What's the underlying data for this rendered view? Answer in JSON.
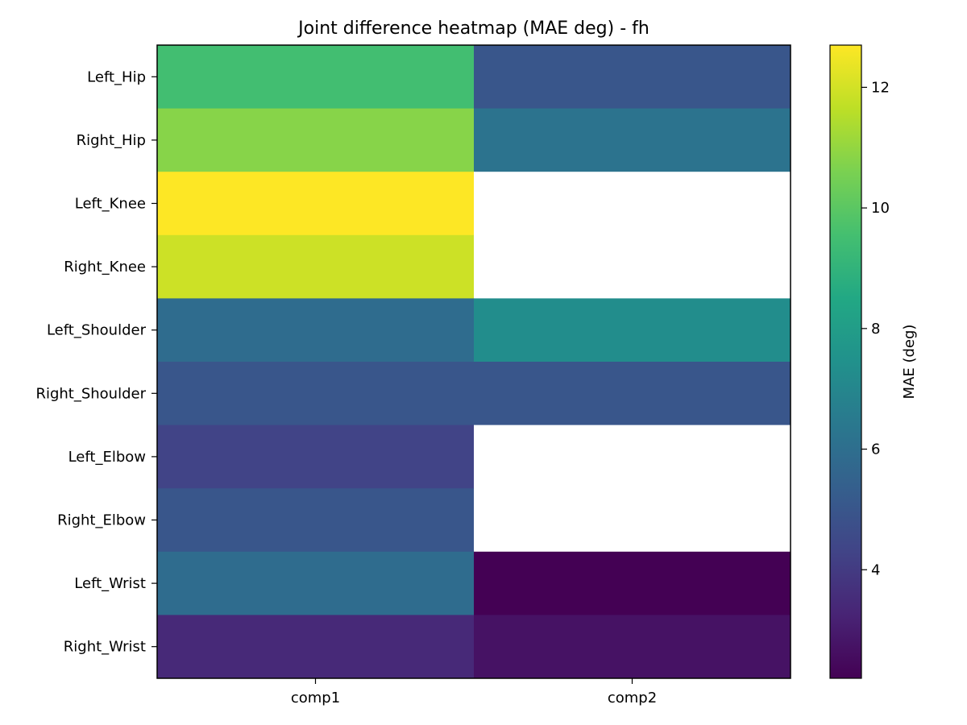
{
  "chart_data": {
    "type": "heatmap",
    "title": "Joint difference heatmap (MAE deg) - fh",
    "xlabel": "",
    "ylabel": "",
    "columns": [
      "comp1",
      "comp2"
    ],
    "rows": [
      "Left_Hip",
      "Right_Hip",
      "Left_Knee",
      "Right_Knee",
      "Left_Shoulder",
      "Right_Shoulder",
      "Left_Elbow",
      "Right_Elbow",
      "Left_Wrist",
      "Right_Wrist"
    ],
    "values": [
      [
        9.5,
        5.0
      ],
      [
        10.8,
        6.2
      ],
      [
        12.7,
        null
      ],
      [
        11.9,
        null
      ],
      [
        5.9,
        7.3
      ],
      [
        5.0,
        5.0
      ],
      [
        4.3,
        null
      ],
      [
        5.0,
        null
      ],
      [
        5.9,
        2.2
      ],
      [
        3.4,
        2.7
      ]
    ],
    "colormap": "viridis",
    "vmin": 2.2,
    "vmax": 12.7,
    "colorbar": {
      "label": "MAE (deg)",
      "ticks": [
        4,
        6,
        8,
        10,
        12
      ]
    },
    "missing_color": "#ffffff"
  }
}
